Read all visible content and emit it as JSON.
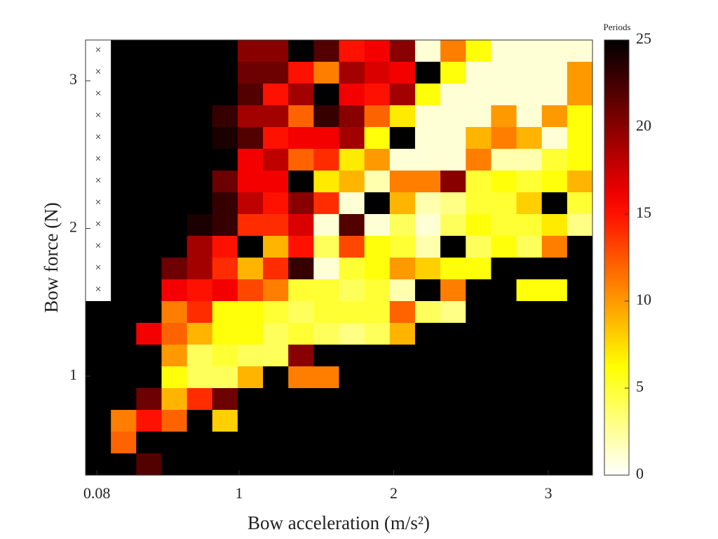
{
  "chart_data": {
    "type": "heatmap",
    "xlabel": "Bow acceleration (m/s²)",
    "ylabel": "Bow force (N)",
    "colorbar_label": "Periods",
    "colormap": "hot_r",
    "null_marker": "×",
    "xlim": [
      0.007,
      3.286
    ],
    "xticks": [
      0.08,
      1,
      2,
      3
    ],
    "ylim": [
      0.33,
      3.276
    ],
    "yticks": [
      1,
      2,
      3
    ],
    "clim": [
      0,
      25
    ],
    "cticks": [
      0,
      5,
      10,
      15,
      20,
      25
    ],
    "z": [
      [
        null,
        25,
        25,
        25,
        25,
        25,
        20,
        20,
        25,
        22,
        15,
        16,
        20,
        1,
        11,
        6,
        1,
        1,
        1,
        1
      ],
      [
        null,
        25,
        25,
        25,
        25,
        25,
        21,
        21,
        15,
        11,
        19,
        17,
        16,
        25,
        6,
        1,
        1,
        1,
        1,
        10
      ],
      [
        null,
        25,
        25,
        25,
        25,
        25,
        22,
        15,
        19,
        25,
        16,
        15,
        19,
        6,
        1,
        1,
        1,
        1,
        1,
        10
      ],
      [
        null,
        25,
        25,
        25,
        25,
        23,
        19,
        19,
        12,
        23,
        20,
        12,
        7,
        1,
        1,
        1,
        10,
        1,
        10,
        6
      ],
      [
        null,
        25,
        25,
        25,
        25,
        24,
        22,
        15,
        16,
        16,
        19,
        6,
        25,
        1,
        1,
        9,
        11,
        9,
        1,
        6
      ],
      [
        null,
        25,
        25,
        25,
        25,
        25,
        16,
        18,
        12,
        14,
        7,
        10,
        1,
        1,
        1,
        11,
        2,
        2,
        5,
        6
      ],
      [
        null,
        25,
        25,
        25,
        25,
        21,
        16,
        16,
        25,
        7,
        9,
        2,
        11,
        11,
        20,
        5,
        6,
        5,
        6,
        9
      ],
      [
        null,
        25,
        25,
        25,
        25,
        23,
        18,
        15,
        20,
        14,
        1,
        25,
        9,
        2,
        3,
        5,
        5,
        8,
        25,
        5
      ],
      [
        null,
        25,
        25,
        25,
        24,
        23,
        14,
        14,
        17,
        1,
        22,
        1,
        4,
        1,
        4,
        6,
        5,
        5,
        7,
        3
      ],
      [
        null,
        25,
        25,
        25,
        19,
        15,
        25,
        9,
        15,
        4,
        13,
        6,
        5,
        2,
        25,
        4,
        6,
        4,
        11,
        25
      ],
      [
        null,
        25,
        25,
        21,
        19,
        14,
        9,
        14,
        23,
        1,
        5,
        6,
        10,
        8,
        6,
        6,
        25,
        25,
        25,
        25
      ],
      [
        null,
        25,
        25,
        16,
        15,
        16,
        13,
        11,
        5,
        5,
        4,
        5,
        2,
        25,
        11,
        25,
        25,
        6,
        6,
        25
      ],
      [
        25,
        25,
        25,
        11,
        14,
        6,
        6,
        5,
        4,
        5,
        5,
        5,
        12,
        4,
        3,
        25,
        25,
        25,
        25,
        25
      ],
      [
        25,
        25,
        16,
        12,
        9,
        6,
        6,
        4,
        5,
        4,
        3,
        4,
        9,
        25,
        25,
        25,
        25,
        25,
        25,
        25
      ],
      [
        25,
        25,
        25,
        10,
        4,
        5,
        4,
        4,
        20,
        25,
        25,
        25,
        25,
        25,
        25,
        25,
        25,
        25,
        25,
        25
      ],
      [
        25,
        25,
        25,
        6,
        4,
        4,
        9,
        25,
        11,
        11,
        25,
        25,
        25,
        25,
        25,
        25,
        25,
        25,
        25,
        25
      ],
      [
        25,
        25,
        21,
        9,
        14,
        21,
        25,
        25,
        25,
        25,
        25,
        25,
        25,
        25,
        25,
        25,
        25,
        25,
        25,
        25
      ],
      [
        25,
        11,
        15,
        12,
        25,
        8,
        25,
        25,
        25,
        25,
        25,
        25,
        25,
        25,
        25,
        25,
        25,
        25,
        25,
        25
      ],
      [
        25,
        12,
        25,
        25,
        25,
        25,
        25,
        25,
        25,
        25,
        25,
        25,
        25,
        25,
        25,
        25,
        25,
        25,
        25,
        25
      ],
      [
        25,
        25,
        22,
        25,
        25,
        25,
        25,
        25,
        25,
        25,
        25,
        25,
        25,
        25,
        25,
        25,
        25,
        25,
        25,
        25
      ]
    ]
  }
}
